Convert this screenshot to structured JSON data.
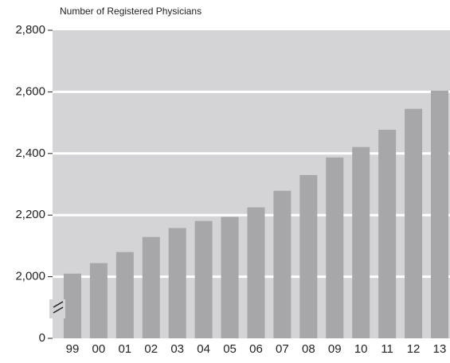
{
  "chart_data": {
    "type": "bar",
    "title": "Number of Registered Physicians",
    "categories": [
      "99",
      "00",
      "01",
      "02",
      "03",
      "04",
      "05",
      "06",
      "07",
      "08",
      "09",
      "10",
      "11",
      "12",
      "13"
    ],
    "values": [
      2010,
      2044,
      2080,
      2129,
      2158,
      2181,
      2194,
      2225,
      2279,
      2330,
      2387,
      2421,
      2477,
      2545,
      2604
    ],
    "color": "#a7a7a9",
    "ylim": [
      0,
      2800
    ],
    "yticks": [
      0,
      {
        "value": 2000,
        "label": "2,000"
      },
      {
        "value": 2200,
        "label": "2,200"
      },
      {
        "value": 2400,
        "label": "2,400"
      },
      {
        "value": 2600,
        "label": "2,600"
      },
      {
        "value": 2800,
        "label": "2,800"
      }
    ],
    "axis_break": [
      0,
      2000
    ],
    "grid": true
  }
}
